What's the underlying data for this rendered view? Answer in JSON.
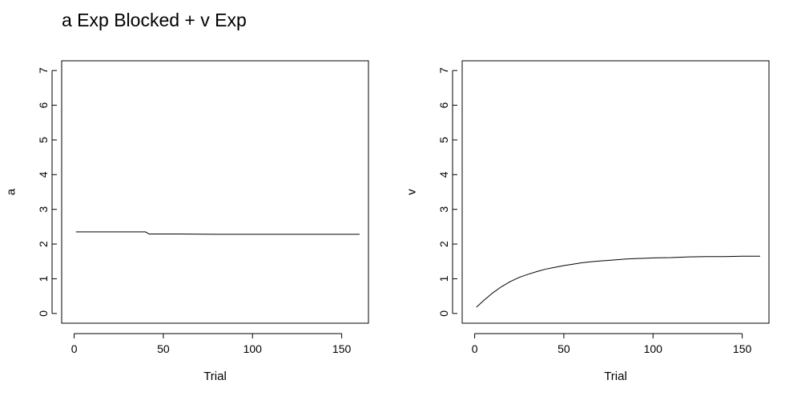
{
  "figure": {
    "title": "a Exp Blocked + v Exp"
  },
  "chart_data": [
    {
      "type": "line",
      "xlabel": "Trial",
      "ylabel": "a",
      "xlim": [
        -7,
        165
      ],
      "ylim": [
        -0.28,
        7.28
      ],
      "xticks": [
        0,
        50,
        100,
        150
      ],
      "yticks": [
        0,
        1,
        2,
        3,
        4,
        5,
        6,
        7
      ],
      "grid": false,
      "series": [
        {
          "x": [
            1,
            40,
            41,
            42,
            60,
            80,
            100,
            120,
            140,
            160
          ],
          "y": [
            2.35,
            2.35,
            2.32,
            2.29,
            2.29,
            2.28,
            2.28,
            2.28,
            2.28,
            2.28
          ]
        }
      ]
    },
    {
      "type": "line",
      "xlabel": "Trial",
      "ylabel": "v",
      "xlim": [
        -7,
        165
      ],
      "ylim": [
        -0.28,
        7.28
      ],
      "xticks": [
        0,
        50,
        100,
        150
      ],
      "yticks": [
        0,
        1,
        2,
        3,
        4,
        5,
        6,
        7
      ],
      "grid": false,
      "series": [
        {
          "x": [
            1,
            5,
            10,
            15,
            20,
            25,
            30,
            35,
            40,
            45,
            50,
            55,
            60,
            65,
            70,
            75,
            80,
            85,
            90,
            95,
            100,
            110,
            120,
            130,
            140,
            150,
            160
          ],
          "y": [
            0.18,
            0.37,
            0.59,
            0.77,
            0.92,
            1.04,
            1.13,
            1.21,
            1.28,
            1.33,
            1.38,
            1.42,
            1.46,
            1.49,
            1.51,
            1.53,
            1.55,
            1.57,
            1.58,
            1.59,
            1.6,
            1.61,
            1.63,
            1.64,
            1.64,
            1.65,
            1.65
          ]
        }
      ]
    }
  ]
}
